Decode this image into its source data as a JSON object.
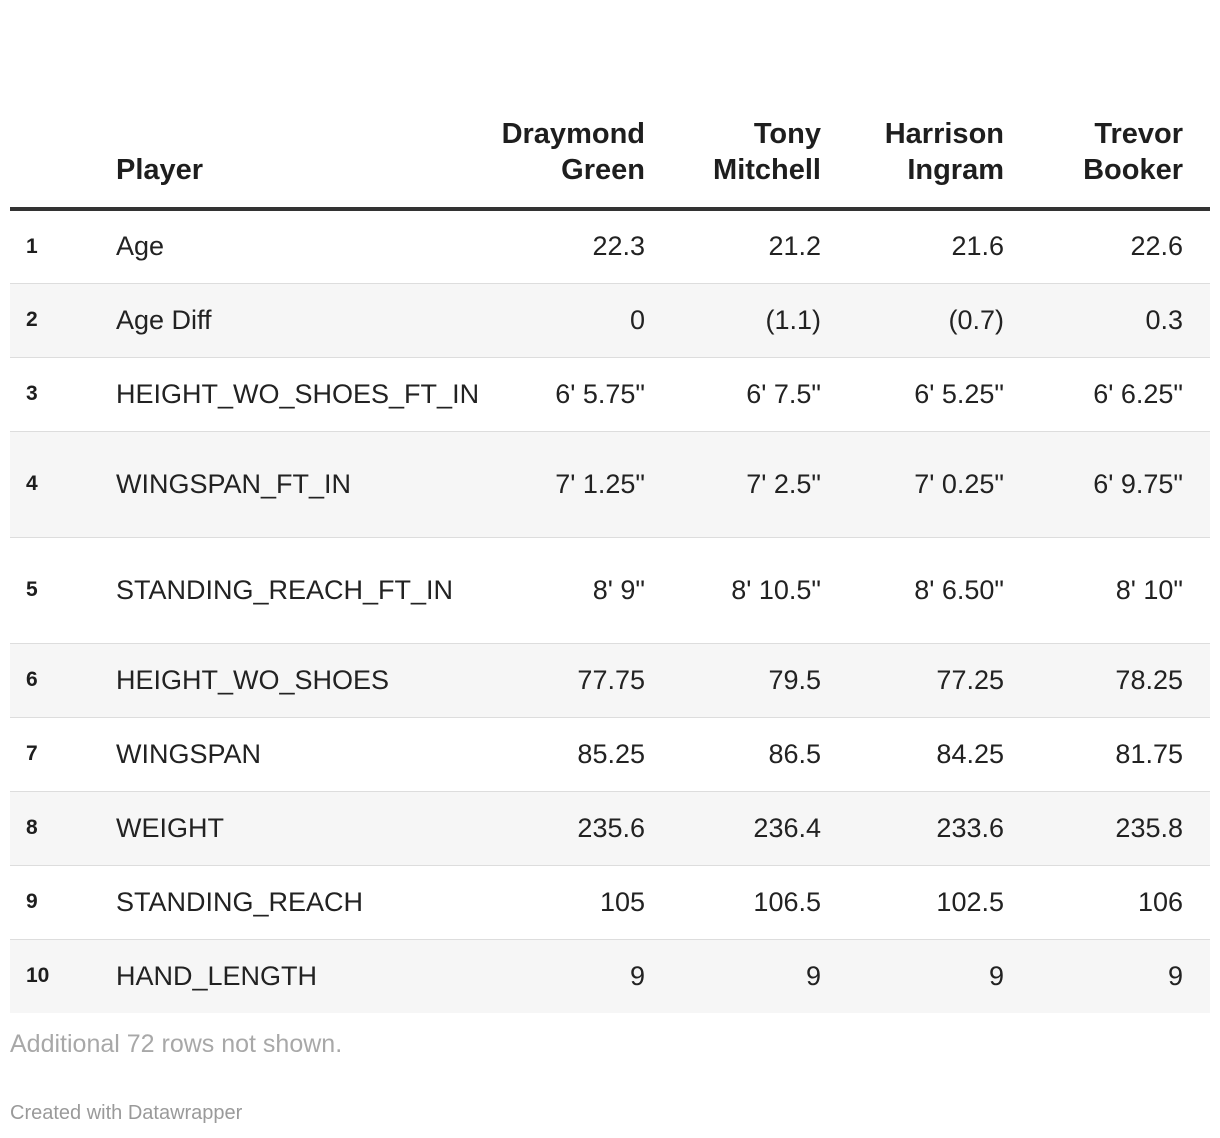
{
  "chart_data": {
    "type": "table",
    "columns": [
      "",
      "Player",
      "Draymond Green",
      "Tony Mitchell",
      "Harrison Ingram",
      "Trevor Booker"
    ],
    "header": {
      "index": "",
      "player": "Player",
      "players": [
        {
          "first": "Draymond",
          "last": "Green"
        },
        {
          "first": "Tony",
          "last": "Mitchell"
        },
        {
          "first": "Harrison",
          "last": "Ingram"
        },
        {
          "first": "Trevor",
          "last": "Booker"
        }
      ]
    },
    "rows": [
      {
        "index": "1",
        "label": "Age",
        "values": [
          "22.3",
          "21.2",
          "21.6",
          "22.6"
        ]
      },
      {
        "index": "2",
        "label": "Age Diff",
        "values": [
          "0",
          "(1.1)",
          "(0.7)",
          "0.3"
        ]
      },
      {
        "index": "3",
        "label": "HEIGHT_WO_SHOES_FT_IN",
        "values": [
          "6' 5.75\"",
          "6' 7.5\"",
          "6' 5.25\"",
          "6' 6.25\""
        ]
      },
      {
        "index": "4",
        "label": "WINGSPAN_FT_IN",
        "values": [
          "7' 1.25\"",
          "7' 2.5\"",
          "7' 0.25\"",
          "6' 9.75\""
        ]
      },
      {
        "index": "5",
        "label": "STANDING_REACH_FT_IN",
        "values": [
          "8' 9\"",
          "8' 10.5\"",
          "8' 6.50\"",
          "8' 10\""
        ]
      },
      {
        "index": "6",
        "label": "HEIGHT_WO_SHOES",
        "values": [
          "77.75",
          "79.5",
          "77.25",
          "78.25"
        ]
      },
      {
        "index": "7",
        "label": "WINGSPAN",
        "values": [
          "85.25",
          "86.5",
          "84.25",
          "81.75"
        ]
      },
      {
        "index": "8",
        "label": "WEIGHT",
        "values": [
          "235.6",
          "236.4",
          "233.6",
          "235.8"
        ]
      },
      {
        "index": "9",
        "label": "STANDING_REACH",
        "values": [
          "105",
          "106.5",
          "102.5",
          "106"
        ]
      },
      {
        "index": "10",
        "label": "HAND_LENGTH",
        "values": [
          "9",
          "9",
          "9",
          "9"
        ]
      }
    ],
    "notes": "Additional 72 rows not shown.",
    "credit": "Created with Datawrapper"
  }
}
